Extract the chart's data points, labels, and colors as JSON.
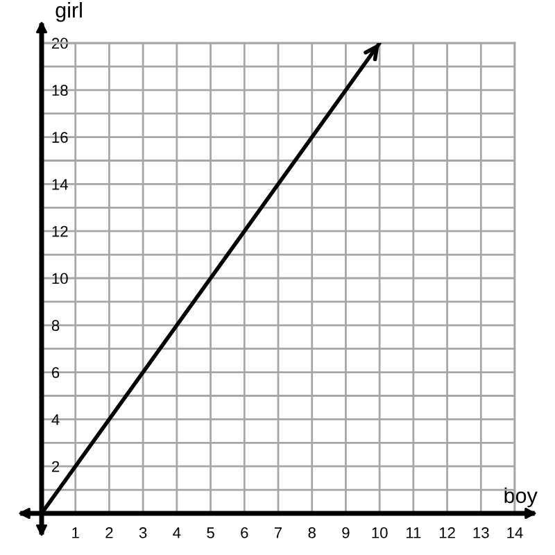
{
  "chart_data": {
    "type": "line",
    "xlabel": "boy",
    "ylabel": "girl",
    "x": [
      0,
      10
    ],
    "series": [
      {
        "color": "#000000",
        "values": [
          0,
          20
        ]
      }
    ],
    "xlim": [
      0,
      14
    ],
    "ylim": [
      0,
      20
    ],
    "xticks": [
      1,
      2,
      3,
      4,
      5,
      6,
      7,
      8,
      9,
      10,
      11,
      12,
      13,
      14
    ],
    "yticks": [
      {
        "value": 1,
        "label": null
      },
      2,
      {
        "value": 3,
        "label": null
      },
      4,
      {
        "value": 5,
        "label": null
      },
      6,
      {
        "value": 7,
        "label": null
      },
      8,
      {
        "value": 9,
        "label": null
      },
      10,
      {
        "value": 11,
        "label": null
      },
      12,
      {
        "value": 13,
        "label": null
      },
      14,
      {
        "value": 15,
        "label": null
      },
      16,
      {
        "value": 17,
        "label": null
      },
      18,
      {
        "value": 19,
        "label": null
      },
      20
    ],
    "grid": true
  }
}
